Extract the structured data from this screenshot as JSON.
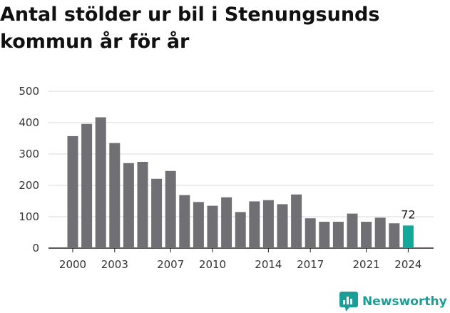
{
  "chart_data": {
    "type": "bar",
    "title": "Antal stölder ur bil i Stenungsunds kommun år för år",
    "xlabel": "",
    "ylabel": "",
    "categories": [
      "2000",
      "2001",
      "2002",
      "2003",
      "2004",
      "2005",
      "2006",
      "2007",
      "2008",
      "2009",
      "2010",
      "2011",
      "2012",
      "2013",
      "2014",
      "2015",
      "2016",
      "2017",
      "2018",
      "2019",
      "2020",
      "2021",
      "2022",
      "2023",
      "2024"
    ],
    "values": [
      357,
      396,
      417,
      335,
      271,
      275,
      221,
      246,
      169,
      147,
      135,
      162,
      115,
      149,
      153,
      140,
      171,
      95,
      84,
      84,
      110,
      84,
      97,
      79,
      72
    ],
    "x_tick_labels": [
      "2000",
      "2003",
      "2007",
      "2010",
      "2014",
      "2017",
      "2021",
      "2024"
    ],
    "y_ticks": [
      0,
      100,
      200,
      300,
      400,
      500
    ],
    "ylim": [
      0,
      500
    ],
    "grid": true,
    "highlight": {
      "category": "2024",
      "label": "72"
    },
    "colors": {
      "bar": "#707074",
      "highlight": "#12a89a",
      "grid": "#d9d9d9",
      "axis": "#222222"
    }
  },
  "branding": {
    "name": "Newsworthy",
    "icon": "newsworthy-chart-icon",
    "color": "#1a9e96"
  }
}
